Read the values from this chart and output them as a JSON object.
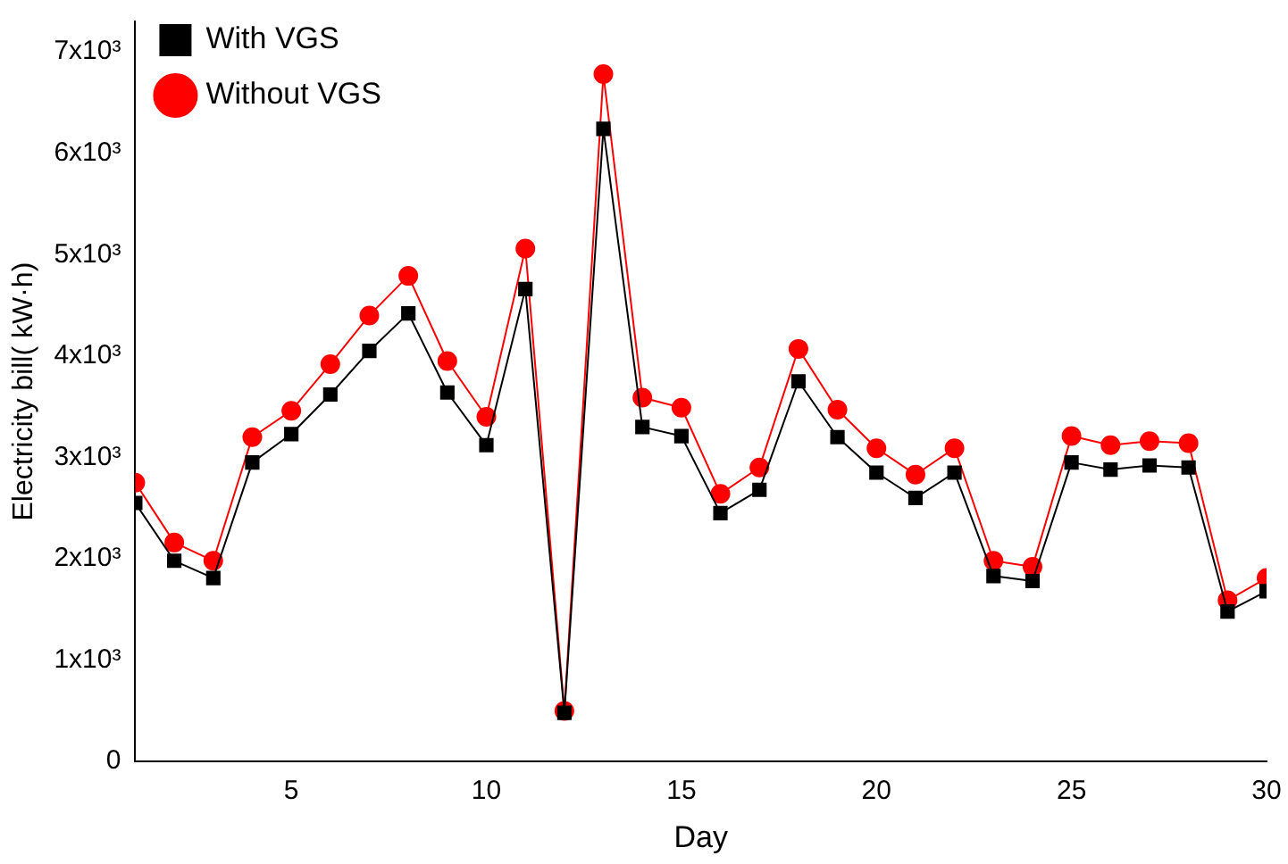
{
  "chart_data": {
    "type": "line",
    "xlabel": "Day",
    "ylabel": "Electricity bill( kW·h)",
    "x": [
      1,
      2,
      3,
      4,
      5,
      6,
      7,
      8,
      9,
      10,
      11,
      12,
      13,
      14,
      15,
      16,
      17,
      18,
      19,
      20,
      21,
      22,
      23,
      24,
      25,
      26,
      27,
      28,
      29,
      30
    ],
    "series": [
      {
        "name": "With VGS",
        "color": "#000000",
        "marker": "square",
        "values": [
          2550,
          1980,
          1810,
          2950,
          3230,
          3620,
          4050,
          4420,
          3640,
          3120,
          4660,
          480,
          6240,
          3300,
          3210,
          2450,
          2680,
          3750,
          3200,
          2850,
          2600,
          2850,
          1830,
          1780,
          2950,
          2880,
          2920,
          2900,
          1480,
          1680
        ]
      },
      {
        "name": "Without VGS",
        "color": "#ff0000",
        "marker": "circle",
        "values": [
          2750,
          2160,
          1980,
          3200,
          3460,
          3920,
          4400,
          4790,
          3950,
          3400,
          5060,
          500,
          6780,
          3590,
          3490,
          2640,
          2900,
          4070,
          3470,
          3090,
          2830,
          3090,
          1980,
          1920,
          3210,
          3120,
          3160,
          3140,
          1590,
          1810
        ]
      }
    ],
    "xlim": [
      1,
      30
    ],
    "xticks": [
      5,
      10,
      15,
      20,
      25,
      30
    ],
    "ylim": [
      0,
      7300
    ],
    "yticks": [
      0,
      {
        "value": 1000,
        "label": "1x10³"
      },
      {
        "value": 2000,
        "label": "2x10³"
      },
      {
        "value": 3000,
        "label": "3x10³"
      },
      {
        "value": 4000,
        "label": "4x10³"
      },
      {
        "value": 5000,
        "label": "5x10³"
      },
      {
        "value": 6000,
        "label": "6x10³"
      },
      {
        "value": 7000,
        "label": "7x10³"
      }
    ],
    "grid": false,
    "legend": "top left",
    "line_style": "solid"
  }
}
